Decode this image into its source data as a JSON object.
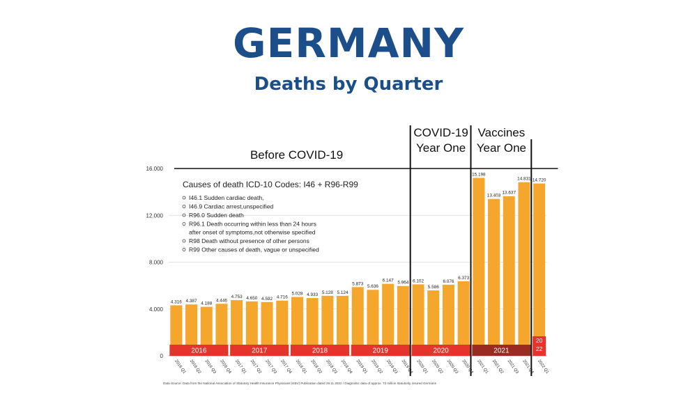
{
  "title": "GERMANY",
  "subtitle": "Deaths by Quarter",
  "colors": {
    "bar": "#f4a72c",
    "year_band": "#e4342b",
    "year_band_2021": "#9a2a22",
    "title": "#1c4f8a"
  },
  "chart_data": {
    "type": "bar",
    "categories": [
      "2016 Q1",
      "2016 Q2",
      "2016 Q3",
      "2016 Q4",
      "2017 Q1",
      "2017 Q2",
      "2017 Q3",
      "2017 Q4",
      "2018 Q1",
      "2018 Q2",
      "2018 Q3",
      "2018 Q4",
      "2019 Q1",
      "2019 Q2",
      "2019 Q3",
      "2019 Q4",
      "2020 Q1",
      "2020 Q2",
      "2020 Q3",
      "2020 Q4",
      "2021 Q1",
      "2021 Q2",
      "2021 Q3",
      "2021 Q4",
      "2022 Q1"
    ],
    "values": [
      4316,
      4387,
      4188,
      4446,
      4753,
      4650,
      4592,
      4716,
      5028,
      4933,
      5128,
      5124,
      5873,
      5636,
      6147,
      5964,
      6102,
      5586,
      6076,
      6373,
      15198,
      13403,
      13637,
      14831,
      14720
    ],
    "value_labels": [
      "4.316",
      "4.387",
      "4.188",
      "4.446",
      "4.753",
      "4.650",
      "4.592",
      "4.716",
      "5.028",
      "4.933",
      "5.128",
      "5.124",
      "5.873",
      "5.636",
      "6.147",
      "5.964",
      "6.102",
      "5.586",
      "6.076",
      "6.373",
      "15.198",
      "13.403",
      "13.637",
      "14.831",
      "14.720"
    ],
    "ylim": [
      0,
      16000
    ],
    "yticks": [
      0,
      4000,
      8000,
      12000,
      16000
    ],
    "ytick_labels": [
      "0",
      "4.000",
      "8.000",
      "12.000",
      "16.000"
    ],
    "years": [
      {
        "label": "2016",
        "start": 0,
        "end": 3
      },
      {
        "label": "2017",
        "start": 4,
        "end": 7
      },
      {
        "label": "2018",
        "start": 8,
        "end": 11
      },
      {
        "label": "2019",
        "start": 12,
        "end": 15
      },
      {
        "label": "2020",
        "start": 16,
        "end": 19
      },
      {
        "label": "2021",
        "start": 20,
        "end": 23
      },
      {
        "label": "2022",
        "start": 24,
        "end": 24
      }
    ],
    "periods": [
      {
        "label_lines": [
          "Before COVID-19"
        ],
        "start": 0,
        "end": 15
      },
      {
        "label_lines": [
          "COVID-19",
          "Year One"
        ],
        "start": 16,
        "end": 19
      },
      {
        "label_lines": [
          "Vaccines",
          "Year One"
        ],
        "start": 20,
        "end": 23
      }
    ],
    "legend_box": {
      "heading": "Causes of death ICD-10 Codes: I46 + R96-R99",
      "items": [
        [
          "I46.1 Sudden cardiac death,"
        ],
        [
          "I46.9 Cardiac arrest,unspecified"
        ],
        [
          "R96.0 Sudden death"
        ],
        [
          "R96.1 Death occurring within less than 24 hours",
          "after onset of symptoms,not otherwise specified"
        ],
        [
          "R98 Death without presence of other persons"
        ],
        [
          "R99 Other causes of death, vague or unspecified"
        ]
      ]
    },
    "source_note": "Data Source: Data from the National Association of Statutory Health Insurance Physicians (KBV) Publication dated 29.11.2022 / Diagnostic data of approx. 72 million statutorily insured Germans"
  }
}
